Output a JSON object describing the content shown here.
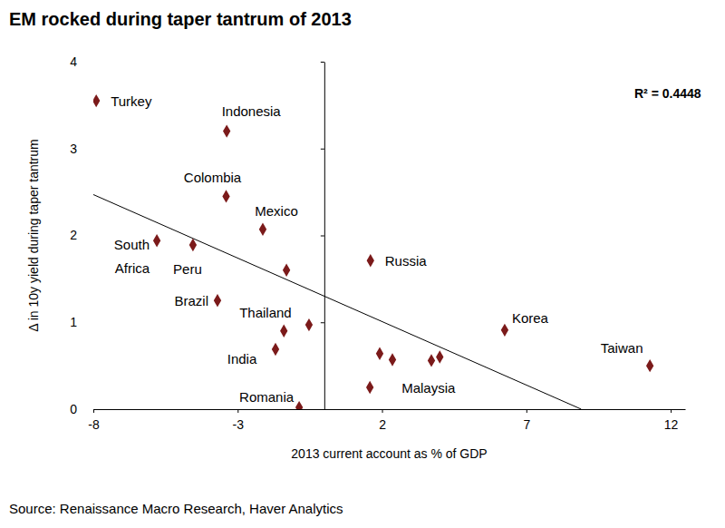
{
  "chart_data": {
    "type": "scatter",
    "title": "EM rocked during taper tantrum of 2013",
    "x_label": "2013 current account as % of GDP",
    "y_label": "Δ in 10y yield during taper tantrum",
    "source": "Source: Renaissance Macro Research, Haver Analytics",
    "annotations": [
      "R² = 0.4448"
    ],
    "x": [
      -7.9,
      -3.38,
      -3.4,
      -2.13,
      -5.8,
      -4.55,
      -1.31,
      -3.7,
      -0.53,
      -1.4,
      -1.69,
      -0.87,
      1.6,
      1.92,
      2.36,
      3.71,
      4.0,
      1.58,
      6.25,
      11.28
    ],
    "values": [
      3.55,
      3.2,
      2.45,
      2.07,
      1.94,
      1.89,
      1.6,
      1.25,
      0.97,
      0.9,
      0.69,
      0.02,
      1.71,
      0.64,
      0.57,
      0.56,
      0.6,
      0.25,
      0.91,
      0.5
    ],
    "labels": [
      "Turkey",
      "Indonesia",
      "Colombia",
      "Mexico",
      "South Africa",
      "Peru",
      null,
      "Brazil",
      "Thailand",
      null,
      "India",
      "Romania",
      "Russia",
      null,
      null,
      null,
      null,
      "Malaysia",
      "Korea",
      "Taiwan"
    ],
    "trendline": {
      "x": [
        -8,
        8.9
      ],
      "values": [
        2.47,
        0
      ]
    },
    "color": "#7b1a1a",
    "marker": "diamond",
    "grid": false,
    "xlim": [
      -8,
      12.5
    ],
    "xticks": [
      -8,
      -3,
      2,
      7,
      12
    ],
    "ylim": [
      0,
      4
    ],
    "yticks": [
      0,
      1,
      2,
      3,
      4
    ]
  }
}
